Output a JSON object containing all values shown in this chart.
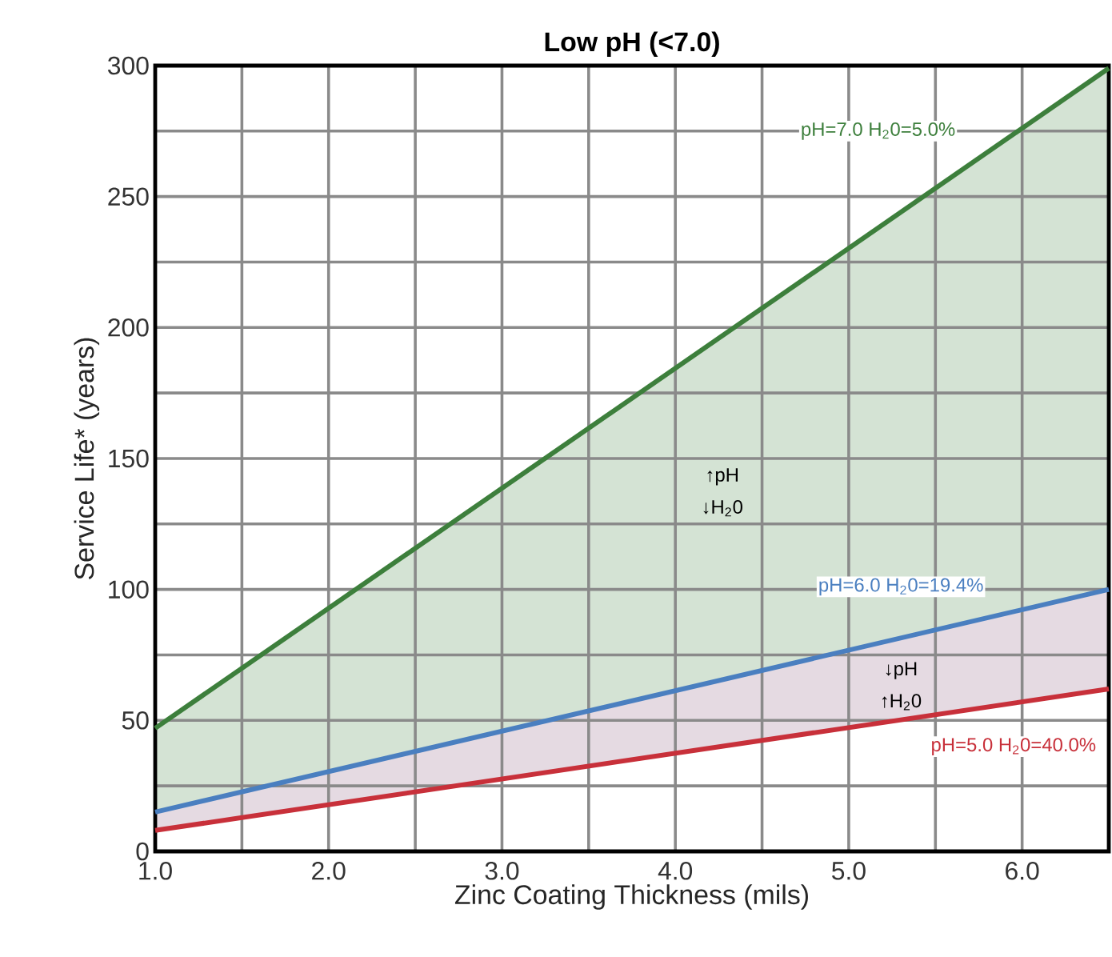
{
  "chart_data": {
    "type": "line",
    "title": "Low pH (<7.0)",
    "xlabel": "Zinc Coating Thickness (mils)",
    "ylabel": "Service Life* (years)",
    "x": [
      1.0,
      6.5
    ],
    "series": [
      {
        "name": "pH=7.0 H$_{2}$0=5.0%",
        "color": "#3d7f3c",
        "values": [
          47,
          299
        ],
        "lower": [
          15,
          100
        ],
        "upper": [
          47,
          299
        ]
      },
      {
        "name": "pH=6.0 H$_{2}$0=19.4%",
        "color": "#4a7fc0",
        "values": [
          15,
          100
        ],
        "lower": [
          8,
          62
        ],
        "upper": [
          15,
          100
        ]
      },
      {
        "name": "pH=5.0 H$_{2}$0=40.0%",
        "color": "#c8303a",
        "values": [
          8,
          62
        ]
      }
    ],
    "annotations": [
      "↑pH",
      "↓H$_{2}$0",
      "↓pH",
      "↑H$_{2}$0"
    ],
    "xlim": [
      1.0,
      6.5
    ],
    "ylim": [
      0,
      300
    ],
    "xticks": [
      {
        "value": 1.0,
        "label": "1.0"
      },
      {
        "value": 1.5,
        "label": null
      },
      {
        "value": 2.0,
        "label": "2.0"
      },
      {
        "value": 2.5,
        "label": null
      },
      {
        "value": 3.0,
        "label": "3.0"
      },
      {
        "value": 3.5,
        "label": null
      },
      {
        "value": 4.0,
        "label": "4.0"
      },
      {
        "value": 4.5,
        "label": null
      },
      {
        "value": 5.0,
        "label": "5.0"
      },
      {
        "value": 5.5,
        "label": null
      },
      {
        "value": 6.0,
        "label": "6.0"
      }
    ],
    "yticks": [
      0,
      {
        "value": 25,
        "label": null
      },
      50,
      {
        "value": 75,
        "label": null
      },
      100,
      {
        "value": 125,
        "label": null
      },
      150,
      {
        "value": 175,
        "label": null
      },
      200,
      {
        "value": 225,
        "label": null
      },
      250,
      {
        "value": 275,
        "label": null
      },
      300
    ],
    "grid": true,
    "marker": "none"
  }
}
